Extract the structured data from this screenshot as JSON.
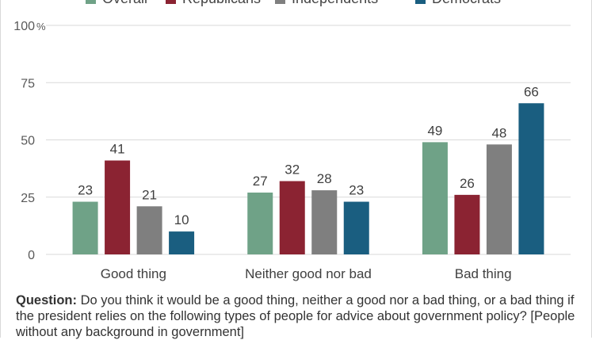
{
  "chart_data": {
    "type": "bar",
    "categories": [
      "Good thing",
      "Neither good nor bad",
      "Bad thing"
    ],
    "series": [
      {
        "name": "Overall",
        "color": "#6fa287",
        "values": [
          23,
          27,
          49
        ]
      },
      {
        "name": "Republicans",
        "color": "#8b2332",
        "values": [
          41,
          32,
          26
        ]
      },
      {
        "name": "Independents",
        "color": "#7f7f7f",
        "values": [
          21,
          28,
          48
        ]
      },
      {
        "name": "Democrats",
        "color": "#1a5e80",
        "values": [
          10,
          23,
          66
        ]
      }
    ],
    "ylim": [
      0,
      100
    ],
    "yticks": [
      "0",
      "25",
      "50",
      "75",
      "100"
    ],
    "y_unit": "%",
    "grid": true,
    "legend_position": "top"
  },
  "footnote": {
    "label": "Question:",
    "text": " Do you think it would be a good thing, neither a good nor a bad thing, or a bad thing if the president relies on the following types of people for advice about government policy? [People without any background in government]"
  }
}
